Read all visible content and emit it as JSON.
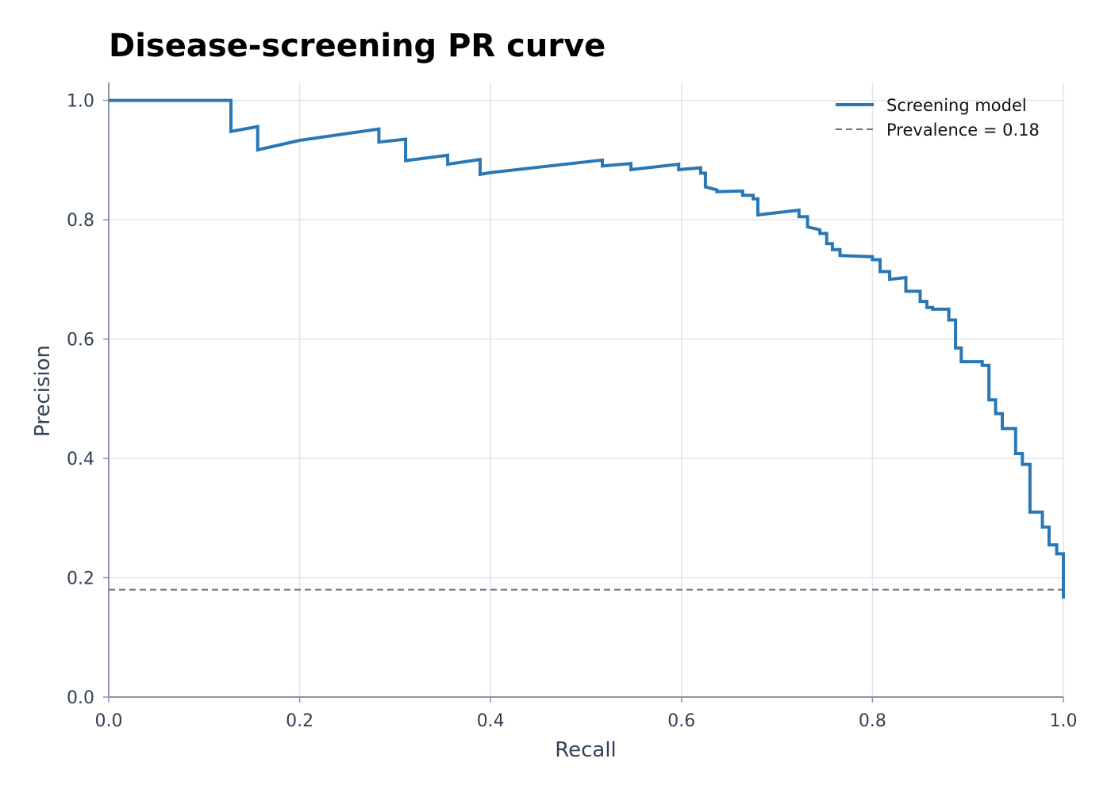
{
  "chart_data": {
    "type": "line",
    "title": "Disease-screening PR curve",
    "xlabel": "Recall",
    "ylabel": "Precision",
    "xlim": [
      0,
      1
    ],
    "ylim": [
      0,
      1.03
    ],
    "xticks": [
      0,
      0.2,
      0.4,
      0.6,
      0.8,
      1.0
    ],
    "xtick_labels": [
      "0.0",
      "0.2",
      "0.4",
      "0.6",
      "0.8",
      "1.0"
    ],
    "yticks": [
      0,
      0.2,
      0.4,
      0.6,
      0.8,
      1.0
    ],
    "ytick_labels": [
      "0.0",
      "0.2",
      "0.4",
      "0.6",
      "0.8",
      "1.0"
    ],
    "grid": true,
    "legend_position": "top-right",
    "series": [
      {
        "name": "Screening model",
        "style": "step",
        "color": "#2a77b4",
        "x": [
          0.0,
          0.128,
          0.128,
          0.156,
          0.156,
          0.2,
          0.283,
          0.283,
          0.311,
          0.311,
          0.355,
          0.355,
          0.389,
          0.389,
          0.4,
          0.517,
          0.517,
          0.547,
          0.547,
          0.597,
          0.597,
          0.62,
          0.62,
          0.625,
          0.625,
          0.637,
          0.637,
          0.664,
          0.664,
          0.675,
          0.675,
          0.68,
          0.68,
          0.723,
          0.723,
          0.732,
          0.732,
          0.745,
          0.745,
          0.752,
          0.752,
          0.758,
          0.758,
          0.766,
          0.766,
          0.8,
          0.8,
          0.808,
          0.808,
          0.818,
          0.818,
          0.835,
          0.835,
          0.85,
          0.85,
          0.857,
          0.857,
          0.863,
          0.863,
          0.88,
          0.88,
          0.887,
          0.887,
          0.893,
          0.893,
          0.915,
          0.915,
          0.922,
          0.922,
          0.929,
          0.929,
          0.936,
          0.936,
          0.95,
          0.95,
          0.957,
          0.957,
          0.965,
          0.965,
          0.978,
          0.978,
          0.985,
          0.985,
          0.993,
          0.993,
          1.0,
          1.0
        ],
        "y": [
          1.0,
          1.0,
          0.948,
          0.956,
          0.917,
          0.933,
          0.952,
          0.93,
          0.935,
          0.899,
          0.908,
          0.893,
          0.901,
          0.876,
          0.879,
          0.9,
          0.89,
          0.894,
          0.884,
          0.893,
          0.884,
          0.887,
          0.878,
          0.878,
          0.855,
          0.85,
          0.847,
          0.848,
          0.841,
          0.841,
          0.835,
          0.835,
          0.808,
          0.816,
          0.805,
          0.805,
          0.788,
          0.783,
          0.777,
          0.777,
          0.76,
          0.76,
          0.75,
          0.75,
          0.74,
          0.738,
          0.733,
          0.733,
          0.713,
          0.713,
          0.7,
          0.703,
          0.68,
          0.68,
          0.663,
          0.663,
          0.653,
          0.653,
          0.65,
          0.65,
          0.632,
          0.632,
          0.585,
          0.585,
          0.562,
          0.562,
          0.556,
          0.556,
          0.498,
          0.498,
          0.475,
          0.475,
          0.45,
          0.45,
          0.408,
          0.408,
          0.39,
          0.39,
          0.31,
          0.31,
          0.285,
          0.285,
          0.255,
          0.255,
          0.24,
          0.24,
          0.165
        ]
      },
      {
        "name": "Prevalence = 0.18",
        "style": "dashed",
        "color": "#64748b",
        "x": [
          0,
          1
        ],
        "y": [
          0.18,
          0.18
        ]
      }
    ]
  }
}
